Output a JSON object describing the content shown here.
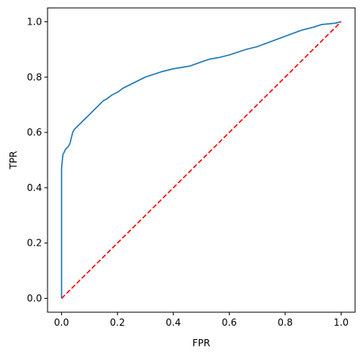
{
  "chart_data": {
    "type": "line",
    "title": "",
    "xlabel": "FPR",
    "ylabel": "TPR",
    "xlim": [
      -0.05,
      1.05
    ],
    "ylim": [
      -0.05,
      1.05
    ],
    "xticks": [
      "0.0",
      "0.2",
      "0.4",
      "0.6",
      "0.8",
      "1.0"
    ],
    "yticks": [
      "0.0",
      "0.2",
      "0.4",
      "0.6",
      "0.8",
      "1.0"
    ],
    "grid": false,
    "legend": "none",
    "series": [
      {
        "color": "#1f77b4",
        "style": "solid",
        "x": [
          0.0,
          0.0,
          0.0,
          0.003,
          0.005,
          0.008,
          0.01,
          0.015,
          0.02,
          0.025,
          0.03,
          0.035,
          0.04,
          0.045,
          0.05,
          0.06,
          0.07,
          0.08,
          0.09,
          0.1,
          0.11,
          0.12,
          0.13,
          0.14,
          0.15,
          0.16,
          0.18,
          0.2,
          0.22,
          0.25,
          0.28,
          0.3,
          0.33,
          0.36,
          0.4,
          0.43,
          0.46,
          0.5,
          0.53,
          0.56,
          0.6,
          0.63,
          0.66,
          0.7,
          0.74,
          0.78,
          0.82,
          0.86,
          0.9,
          0.93,
          0.96,
          0.98,
          1.0
        ],
        "y": [
          0.0,
          0.3,
          0.47,
          0.5,
          0.52,
          0.525,
          0.53,
          0.54,
          0.545,
          0.55,
          0.56,
          0.58,
          0.6,
          0.61,
          0.615,
          0.625,
          0.635,
          0.645,
          0.655,
          0.665,
          0.675,
          0.685,
          0.695,
          0.705,
          0.715,
          0.72,
          0.735,
          0.745,
          0.76,
          0.775,
          0.79,
          0.8,
          0.81,
          0.82,
          0.83,
          0.835,
          0.84,
          0.855,
          0.865,
          0.87,
          0.88,
          0.89,
          0.9,
          0.91,
          0.925,
          0.94,
          0.955,
          0.97,
          0.98,
          0.99,
          0.993,
          0.995,
          1.0
        ]
      },
      {
        "color": "#ff0000",
        "style": "dashed",
        "x": [
          0.0,
          1.0
        ],
        "y": [
          0.0,
          1.0
        ]
      }
    ]
  }
}
